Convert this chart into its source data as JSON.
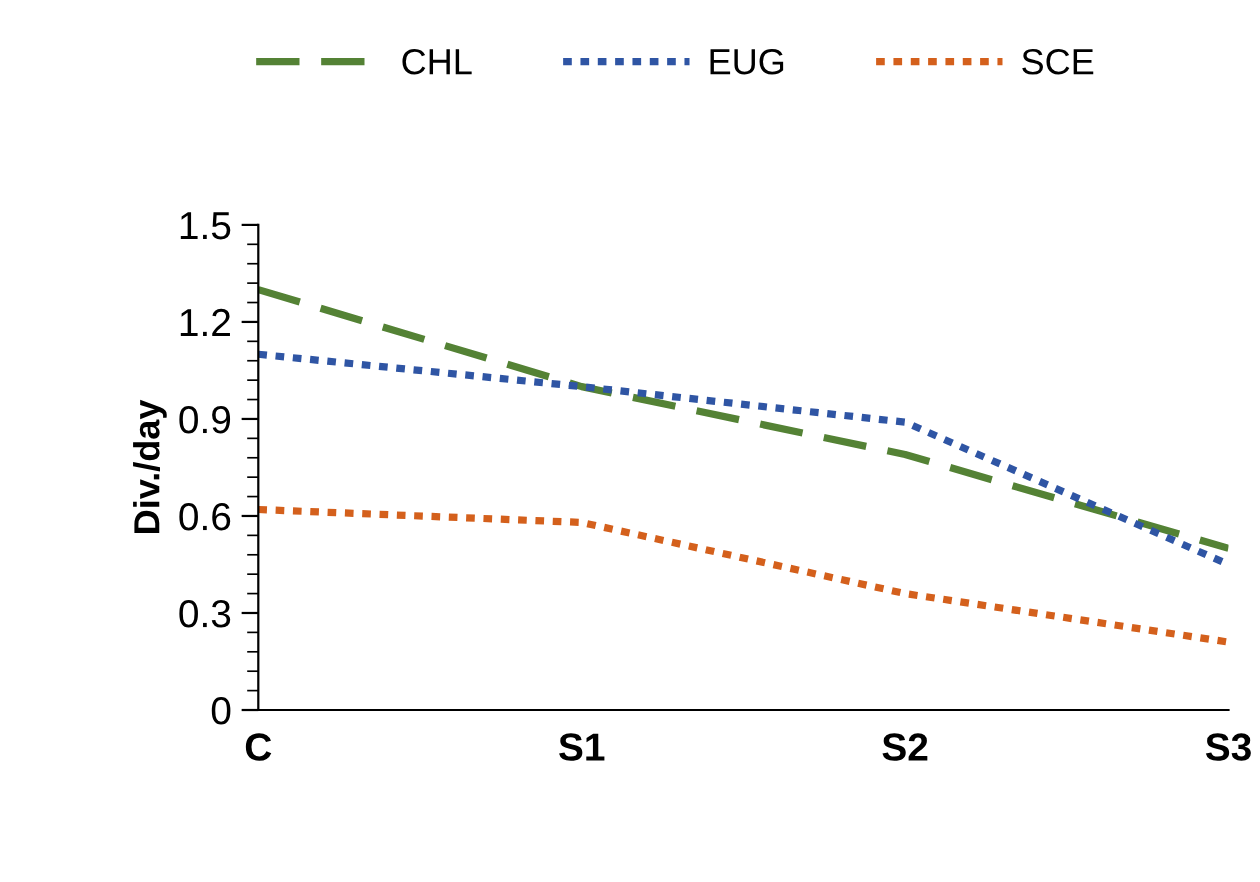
{
  "chart_data": {
    "type": "line",
    "ylabel": "Div./day",
    "categories": [
      "C",
      "S1",
      "S2",
      "S3"
    ],
    "series": [
      {
        "name": "CHL",
        "color": "#548235",
        "values": [
          1.3,
          1.0,
          0.79,
          0.5
        ],
        "line_style": "dashed"
      },
      {
        "name": "EUG",
        "color": "#2f55a4",
        "values": [
          1.1,
          1.0,
          0.89,
          0.45
        ],
        "line_style": "dotted"
      },
      {
        "name": "SCE",
        "color": "#d4601c",
        "values": [
          0.62,
          0.58,
          0.36,
          0.21
        ],
        "line_style": "dotted"
      }
    ],
    "ylim": [
      0,
      1.5
    ],
    "yticks": [
      0,
      0.3,
      0.6,
      0.9,
      1.2,
      1.5
    ],
    "grid": false,
    "legend": "top",
    "marker": "none"
  }
}
